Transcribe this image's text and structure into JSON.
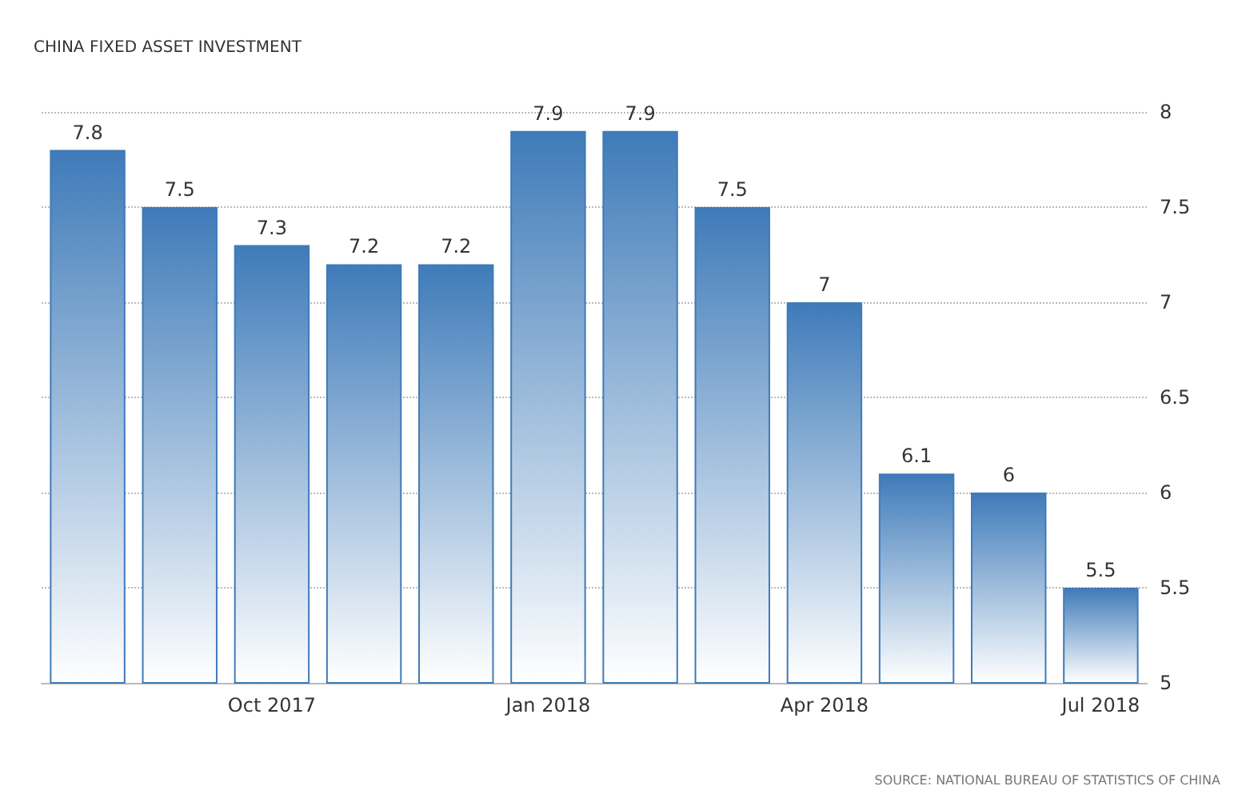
{
  "chart_data": {
    "type": "bar",
    "title": "CHINA FIXED ASSET INVESTMENT",
    "categories": [
      null,
      null,
      "Oct 2017",
      null,
      null,
      "Jan 2018",
      null,
      null,
      "Apr 2018",
      null,
      null,
      "Jul 2018"
    ],
    "values": [
      7.8,
      7.5,
      7.3,
      7.2,
      7.2,
      7.9,
      7.9,
      7.5,
      7,
      6.1,
      6,
      5.5
    ],
    "color": "#3f7bb9",
    "ylim": [
      5,
      8
    ],
    "yticks": [
      5,
      5.5,
      6,
      6.5,
      7,
      7.5,
      8
    ],
    "grid": "y",
    "data_labels": true,
    "annotations": [
      "SOURCE: NATIONAL BUREAU OF STATISTICS OF CHINA"
    ]
  }
}
